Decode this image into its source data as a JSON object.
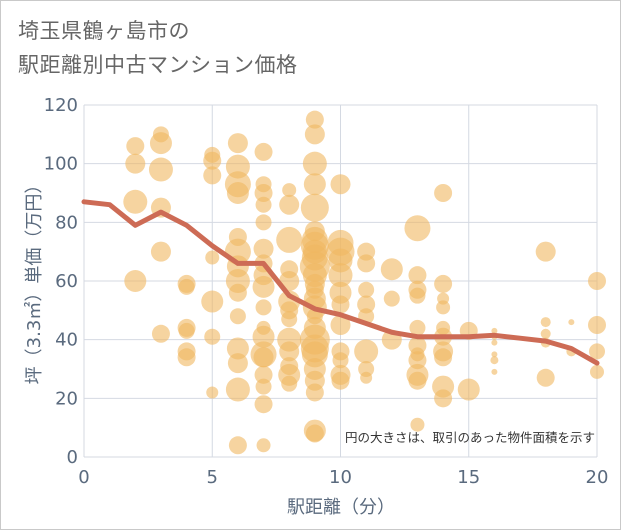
{
  "chart_data": {
    "type": "scatter",
    "title_lines": [
      "埼玉県鶴ヶ島市の",
      "駅距離別中古マンション価格"
    ],
    "xlabel": "駅距離（分）",
    "ylabel": "坪（3.3㎡）単価（万円）",
    "xlim": [
      0,
      20
    ],
    "ylim": [
      0,
      120
    ],
    "x_ticks": [
      "0",
      "5",
      "10",
      "15",
      "20"
    ],
    "y_ticks": [
      "0",
      "20",
      "40",
      "60",
      "80",
      "100",
      "120"
    ],
    "grid": true,
    "annotation": "円の大きさは、取引のあった物件面積を示す",
    "colors": {
      "bubble": "#f0b860",
      "line": "#cd6b55",
      "grid": "#d4d9e2",
      "axis": "#5a6a7e"
    },
    "trend_line": {
      "x": [
        0,
        1,
        2,
        3,
        4,
        5,
        6,
        7,
        8,
        9,
        10,
        11,
        12,
        13,
        14,
        15,
        16,
        17,
        18,
        19,
        20
      ],
      "y": [
        87,
        86,
        79,
        83.5,
        79,
        72,
        66,
        66,
        55,
        50.5,
        48.5,
        45.5,
        42.5,
        41,
        41,
        41,
        41.5,
        40.5,
        39.5,
        37,
        32
      ]
    },
    "bubbles": [
      [
        2,
        106,
        9
      ],
      [
        2,
        100,
        10
      ],
      [
        2,
        87,
        12
      ],
      [
        2,
        60,
        11
      ],
      [
        3,
        110,
        8
      ],
      [
        3,
        107,
        11
      ],
      [
        3,
        98,
        12
      ],
      [
        3,
        85,
        10
      ],
      [
        3,
        70,
        10
      ],
      [
        3,
        42,
        9
      ],
      [
        4,
        59,
        9
      ],
      [
        4,
        58,
        8
      ],
      [
        4,
        44,
        9
      ],
      [
        4,
        43,
        8
      ],
      [
        4,
        36,
        9
      ],
      [
        4,
        34,
        9
      ],
      [
        5,
        103,
        8
      ],
      [
        5,
        101,
        9
      ],
      [
        5,
        96,
        9
      ],
      [
        5,
        68,
        7
      ],
      [
        5,
        53,
        11
      ],
      [
        5,
        41,
        8
      ],
      [
        5,
        22,
        6
      ],
      [
        6,
        107,
        10
      ],
      [
        6,
        99,
        12
      ],
      [
        6,
        93,
        13
      ],
      [
        6,
        90,
        11
      ],
      [
        6,
        75,
        9
      ],
      [
        6,
        70,
        13
      ],
      [
        6,
        65,
        11
      ],
      [
        6,
        60,
        12
      ],
      [
        6,
        56,
        9
      ],
      [
        6,
        48,
        8
      ],
      [
        6,
        37,
        11
      ],
      [
        6,
        32,
        10
      ],
      [
        6,
        23,
        12
      ],
      [
        6,
        4,
        9
      ],
      [
        7,
        104,
        9
      ],
      [
        7,
        93,
        8
      ],
      [
        7,
        90,
        9
      ],
      [
        7,
        86,
        8
      ],
      [
        7,
        80,
        8
      ],
      [
        7,
        71,
        10
      ],
      [
        7,
        66,
        9
      ],
      [
        7,
        62,
        10
      ],
      [
        7,
        58,
        11
      ],
      [
        7,
        51,
        8
      ],
      [
        7,
        44,
        7
      ],
      [
        7,
        41,
        11
      ],
      [
        7,
        35,
        13
      ],
      [
        7,
        34,
        10
      ],
      [
        7,
        28,
        9
      ],
      [
        7,
        24,
        8
      ],
      [
        7,
        18,
        9
      ],
      [
        7,
        4,
        7
      ],
      [
        8,
        91,
        7
      ],
      [
        8,
        86,
        10
      ],
      [
        8,
        74,
        13
      ],
      [
        8,
        64,
        9
      ],
      [
        8,
        60,
        10
      ],
      [
        8,
        53,
        11
      ],
      [
        8,
        50,
        9
      ],
      [
        8,
        47,
        8
      ],
      [
        8,
        40,
        12
      ],
      [
        8,
        36,
        10
      ],
      [
        8,
        31,
        9
      ],
      [
        8,
        28,
        11
      ],
      [
        8,
        25,
        8
      ],
      [
        9,
        115,
        9
      ],
      [
        9,
        110,
        10
      ],
      [
        9,
        100,
        12
      ],
      [
        9,
        93,
        11
      ],
      [
        9,
        85,
        14
      ],
      [
        9,
        77,
        10
      ],
      [
        9,
        74,
        13
      ],
      [
        9,
        72,
        14
      ],
      [
        9,
        70,
        12
      ],
      [
        9,
        68,
        13
      ],
      [
        9,
        65,
        15
      ],
      [
        9,
        62,
        12
      ],
      [
        9,
        59,
        10
      ],
      [
        9,
        57,
        9
      ],
      [
        9,
        54,
        11
      ],
      [
        9,
        51,
        12
      ],
      [
        9,
        48,
        8
      ],
      [
        9,
        44,
        11
      ],
      [
        9,
        40,
        15
      ],
      [
        9,
        37,
        14
      ],
      [
        9,
        35,
        13
      ],
      [
        9,
        30,
        11
      ],
      [
        9,
        26,
        10
      ],
      [
        9,
        22,
        9
      ],
      [
        9,
        9,
        11
      ],
      [
        9,
        8,
        9
      ],
      [
        10,
        93,
        10
      ],
      [
        10,
        73,
        13
      ],
      [
        10,
        70,
        14
      ],
      [
        10,
        67,
        12
      ],
      [
        10,
        62,
        12
      ],
      [
        10,
        56,
        11
      ],
      [
        10,
        52,
        9
      ],
      [
        10,
        45,
        10
      ],
      [
        10,
        36,
        9
      ],
      [
        10,
        33,
        8
      ],
      [
        10,
        28,
        10
      ],
      [
        10,
        26,
        9
      ],
      [
        11,
        70,
        9
      ],
      [
        11,
        66,
        9
      ],
      [
        11,
        57,
        8
      ],
      [
        11,
        52,
        9
      ],
      [
        11,
        48,
        8
      ],
      [
        11,
        36,
        12
      ],
      [
        11,
        30,
        8
      ],
      [
        11,
        27,
        6
      ],
      [
        12,
        64,
        11
      ],
      [
        12,
        54,
        8
      ],
      [
        12,
        40,
        10
      ],
      [
        13,
        78,
        13
      ],
      [
        13,
        62,
        9
      ],
      [
        13,
        57,
        9
      ],
      [
        13,
        55,
        8
      ],
      [
        13,
        44,
        8
      ],
      [
        13,
        38,
        9
      ],
      [
        13,
        35,
        7
      ],
      [
        13,
        33,
        9
      ],
      [
        13,
        28,
        11
      ],
      [
        13,
        26,
        9
      ],
      [
        13,
        11,
        7
      ],
      [
        14,
        90,
        9
      ],
      [
        14,
        59,
        9
      ],
      [
        14,
        54,
        6
      ],
      [
        14,
        51,
        7
      ],
      [
        14,
        44,
        7
      ],
      [
        14,
        41,
        9
      ],
      [
        14,
        36,
        10
      ],
      [
        14,
        34,
        9
      ],
      [
        14,
        24,
        11
      ],
      [
        14,
        20,
        9
      ],
      [
        15,
        43,
        9
      ],
      [
        15,
        23,
        11
      ],
      [
        16,
        43,
        3
      ],
      [
        16,
        41,
        3
      ],
      [
        16,
        39,
        3
      ],
      [
        16,
        35,
        3
      ],
      [
        16,
        33,
        4
      ],
      [
        16,
        29,
        3
      ],
      [
        18,
        70,
        10
      ],
      [
        18,
        46,
        5
      ],
      [
        18,
        42,
        5
      ],
      [
        18,
        39,
        5
      ],
      [
        18,
        27,
        9
      ],
      [
        19,
        46,
        3
      ],
      [
        19,
        36,
        5
      ],
      [
        20,
        60,
        9
      ],
      [
        20,
        45,
        9
      ],
      [
        20,
        36,
        8
      ],
      [
        20,
        29,
        7
      ]
    ]
  }
}
